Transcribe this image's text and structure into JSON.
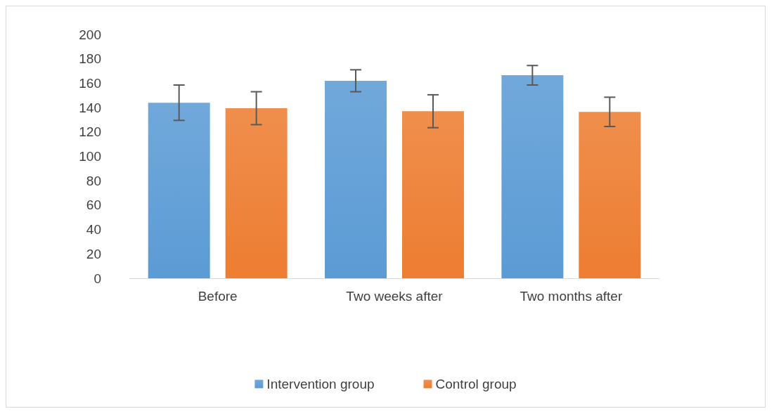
{
  "chart_data": {
    "type": "bar",
    "categories": [
      "Before",
      "Two weeks after",
      "Two months after"
    ],
    "series": [
      {
        "name": "Intervention group",
        "color": "#5b9bd5",
        "values": [
          144,
          162,
          166.5
        ],
        "errors": [
          14.5,
          9,
          8
        ]
      },
      {
        "name": "Control group",
        "color": "#ed7d31",
        "values": [
          139.5,
          137,
          136.5
        ],
        "errors": [
          13.5,
          13.5,
          12
        ]
      }
    ],
    "ylim": [
      0,
      200
    ],
    "yticks": [
      0,
      20,
      40,
      60,
      80,
      100,
      120,
      140,
      160,
      180,
      200
    ],
    "grid": false,
    "legend": "bottom"
  }
}
